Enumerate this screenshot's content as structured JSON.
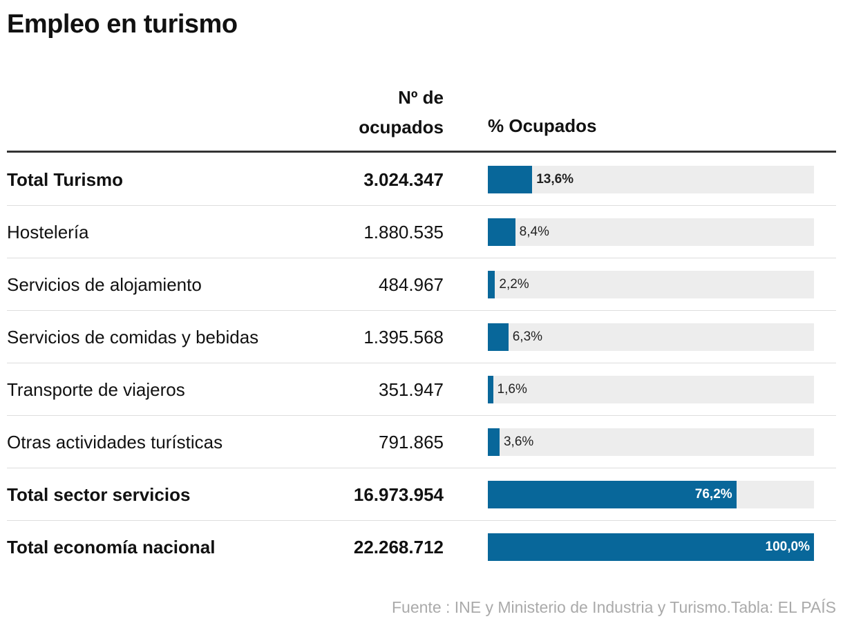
{
  "title": "Empleo en turismo",
  "table": {
    "columns": [
      "Nº de ocupados",
      "% Ocupados"
    ],
    "bar_color": "#08679a",
    "rows": [
      {
        "label": "Total Turismo",
        "ocupados": "3.024.347",
        "percent": 13.6,
        "percent_label": "13,6%",
        "bold": true
      },
      {
        "label": "Hostelería",
        "ocupados": "1.880.535",
        "percent": 8.4,
        "percent_label": "8,4%",
        "bold": false
      },
      {
        "label": "Servicios de alojamiento",
        "ocupados": "484.967",
        "percent": 2.2,
        "percent_label": "2,2%",
        "bold": false
      },
      {
        "label": "Servicios de comidas y bebidas",
        "ocupados": "1.395.568",
        "percent": 6.3,
        "percent_label": "6,3%",
        "bold": false
      },
      {
        "label": "Transporte de viajeros",
        "ocupados": "351.947",
        "percent": 1.6,
        "percent_label": "1,6%",
        "bold": false
      },
      {
        "label": "Otras actividades turísticas",
        "ocupados": "791.865",
        "percent": 3.6,
        "percent_label": "3,6%",
        "bold": false
      },
      {
        "label": "Total sector servicios",
        "ocupados": "16.973.954",
        "percent": 76.2,
        "percent_label": "76,2%",
        "bold": true
      },
      {
        "label": "Total economía nacional",
        "ocupados": "22.268.712",
        "percent": 100.0,
        "percent_label": "100,0%",
        "bold": true
      }
    ]
  },
  "source": "Fuente : INE y Ministerio de Industria y Turismo.Tabla: EL PAÍS"
}
